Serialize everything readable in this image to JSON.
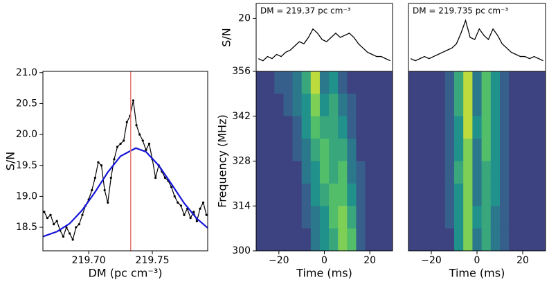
{
  "chart_data": [
    {
      "type": "dm-curve",
      "xlabel": "DM (pc cm⁻³)",
      "ylabel": "S/N",
      "xlim": [
        219.664,
        219.7935
      ],
      "ylim": [
        18.12,
        21.02
      ],
      "xticks": [
        {
          "value": 219.7,
          "label": "219.70"
        },
        {
          "value": 219.75,
          "label": "219.75"
        }
      ],
      "yticks": [
        {
          "value": 18.5,
          "label": "18.5"
        },
        {
          "value": 19.0,
          "label": "19.0"
        },
        {
          "value": 19.5,
          "label": "19.5"
        },
        {
          "value": 20.0,
          "label": "20.0"
        },
        {
          "value": 20.5,
          "label": "20.5"
        },
        {
          "value": 21.0,
          "label": "21.0"
        }
      ],
      "vline": 219.733,
      "vline_color": "#e8786f",
      "series": [
        {
          "color": "#000000",
          "x": [
            219.665,
            219.6675,
            219.67,
            219.6725,
            219.675,
            219.6775,
            219.68,
            219.6825,
            219.685,
            219.6875,
            219.69,
            219.6925,
            219.695,
            219.6975,
            219.7,
            219.7025,
            219.705,
            219.7075,
            219.71,
            219.7125,
            219.715,
            219.7175,
            219.72,
            219.7225,
            219.725,
            219.7275,
            219.73,
            219.7325,
            219.735,
            219.7375,
            219.74,
            219.7425,
            219.745,
            219.7475,
            219.75,
            219.7525,
            219.755,
            219.7575,
            219.76,
            219.7625,
            219.765,
            219.7675,
            219.77,
            219.7725,
            219.775,
            219.7775,
            219.78,
            219.7825,
            219.785,
            219.7875,
            219.79,
            219.7925
          ],
          "values": [
            18.75,
            18.65,
            18.7,
            18.55,
            18.6,
            18.45,
            18.35,
            18.5,
            18.4,
            18.3,
            18.5,
            18.55,
            18.7,
            18.85,
            18.95,
            19.1,
            19.3,
            19.55,
            19.5,
            19.1,
            18.9,
            19.3,
            19.6,
            19.8,
            19.85,
            19.9,
            20.2,
            20.3,
            20.55,
            20.15,
            20.0,
            19.9,
            19.75,
            19.85,
            19.6,
            19.3,
            19.5,
            19.4,
            19.3,
            19.25,
            19.15,
            19.0,
            18.9,
            18.85,
            18.7,
            18.8,
            18.65,
            18.75,
            18.6,
            18.8,
            18.9,
            18.7
          ],
          "style": "points"
        },
        {
          "color": "#1515d8",
          "x": [
            219.664,
            219.675,
            219.685,
            219.695,
            219.705,
            219.715,
            219.725,
            219.737,
            219.745,
            219.755,
            219.765,
            219.775,
            219.785,
            219.7935
          ],
          "values": [
            18.35,
            18.43,
            18.56,
            18.78,
            19.07,
            19.39,
            19.65,
            19.78,
            19.72,
            19.5,
            19.2,
            18.89,
            18.64,
            18.49
          ],
          "style": "line"
        }
      ]
    },
    {
      "type": "profile",
      "ylabel": "S/N",
      "annotation": "DM = 219.37 pc cm⁻³",
      "xlim": [
        -30,
        30
      ],
      "ylim": [
        -5,
        27
      ],
      "yticks": [
        20
      ],
      "color": "#000000",
      "x": [
        -29,
        -27,
        -25,
        -23,
        -21,
        -19,
        -17,
        -15,
        -13,
        -11,
        -9,
        -7,
        -5,
        -3,
        -1,
        1,
        3,
        5,
        7,
        9,
        11,
        13,
        15,
        17,
        19,
        21,
        23,
        25,
        27,
        29
      ],
      "values": [
        1,
        0,
        2,
        1,
        3,
        2,
        4,
        5,
        7,
        9,
        8,
        11,
        15,
        13,
        10,
        9,
        11,
        13,
        11,
        12,
        13,
        11,
        8,
        6,
        4,
        3,
        2,
        2,
        1,
        0
      ]
    },
    {
      "type": "heatmap",
      "xlabel": "Time (ms)",
      "ylabel": "Frequency (MHz)",
      "colormap": "viridis",
      "xlim": [
        -30,
        30
      ],
      "ylim": [
        300,
        356
      ],
      "zlim": [
        0,
        10
      ],
      "xticks": [
        {
          "value": -20,
          "label": "−20"
        },
        0,
        20
      ],
      "yticks": [
        300,
        314,
        328,
        342,
        356
      ],
      "x": [
        -28,
        -24,
        -20,
        -16,
        -12,
        -8,
        -4,
        0,
        4,
        8,
        12,
        16,
        20,
        24,
        28
      ],
      "y": [
        352.5,
        345.5,
        338.5,
        331.5,
        324.5,
        317.5,
        310.5,
        303.5
      ],
      "z": [
        [
          2,
          2,
          3,
          3,
          4,
          6,
          9,
          4,
          5,
          3,
          2,
          2,
          2,
          2,
          2
        ],
        [
          2,
          2,
          2,
          3,
          4,
          5,
          8,
          5,
          6,
          4,
          3,
          2,
          2,
          2,
          2
        ],
        [
          2,
          2,
          2,
          2,
          3,
          5,
          7,
          6,
          6,
          5,
          3,
          2,
          2,
          2,
          2
        ],
        [
          2,
          2,
          2,
          2,
          3,
          4,
          6,
          7,
          6,
          6,
          4,
          2,
          2,
          2,
          2
        ],
        [
          2,
          2,
          2,
          2,
          2,
          4,
          5,
          7,
          6,
          7,
          4,
          3,
          2,
          2,
          2
        ],
        [
          2,
          2,
          2,
          2,
          2,
          3,
          5,
          6,
          7,
          7,
          5,
          3,
          2,
          2,
          2
        ],
        [
          2,
          2,
          2,
          2,
          2,
          3,
          4,
          5,
          7,
          8,
          6,
          3,
          2,
          2,
          2
        ],
        [
          2,
          2,
          2,
          2,
          2,
          2,
          4,
          5,
          6,
          8,
          7,
          3,
          2,
          2,
          2
        ]
      ]
    },
    {
      "type": "profile",
      "annotation": "DM = 219.735 pc cm⁻³",
      "xlim": [
        -30,
        30
      ],
      "ylim": [
        -5,
        27
      ],
      "color": "#000000",
      "x": [
        -29,
        -27,
        -25,
        -23,
        -21,
        -19,
        -17,
        -15,
        -13,
        -11,
        -9,
        -7,
        -5,
        -3,
        -1,
        1,
        3,
        5,
        7,
        9,
        11,
        13,
        15,
        17,
        19,
        21,
        23,
        25,
        27,
        29
      ],
      "values": [
        1,
        0,
        1,
        2,
        1,
        2,
        3,
        4,
        5,
        6,
        8,
        13,
        19,
        11,
        10,
        15,
        12,
        10,
        15,
        12,
        8,
        6,
        4,
        3,
        2,
        2,
        1,
        2,
        1,
        0
      ]
    },
    {
      "type": "heatmap",
      "xlabel": "Time (ms)",
      "colormap": "viridis",
      "xlim": [
        -30,
        30
      ],
      "ylim": [
        300,
        356
      ],
      "zlim": [
        0,
        10
      ],
      "xticks": [
        {
          "value": -20,
          "label": "−20"
        },
        0,
        20
      ],
      "x": [
        -28,
        -24,
        -20,
        -16,
        -12,
        -8,
        -4,
        0,
        4,
        8,
        12,
        16,
        20,
        24,
        28
      ],
      "y": [
        352.5,
        345.5,
        338.5,
        331.5,
        324.5,
        317.5,
        310.5,
        303.5
      ],
      "z": [
        [
          2,
          2,
          2,
          2,
          3,
          6,
          9,
          4,
          7,
          5,
          3,
          2,
          2,
          2,
          2
        ],
        [
          2,
          2,
          2,
          2,
          3,
          6,
          9,
          4,
          7,
          5,
          3,
          2,
          2,
          2,
          2
        ],
        [
          2,
          2,
          2,
          2,
          3,
          5,
          9,
          5,
          7,
          5,
          3,
          2,
          2,
          2,
          2
        ],
        [
          2,
          2,
          2,
          2,
          3,
          5,
          8,
          4,
          7,
          5,
          3,
          2,
          2,
          2,
          2
        ],
        [
          2,
          2,
          2,
          2,
          3,
          6,
          8,
          4,
          6,
          5,
          3,
          2,
          2,
          2,
          2
        ],
        [
          2,
          2,
          2,
          2,
          3,
          5,
          8,
          4,
          6,
          5,
          3,
          2,
          2,
          2,
          2
        ],
        [
          2,
          2,
          2,
          2,
          3,
          5,
          8,
          5,
          6,
          4,
          3,
          2,
          2,
          2,
          2
        ],
        [
          2,
          2,
          2,
          2,
          2,
          5,
          8,
          4,
          6,
          4,
          3,
          2,
          2,
          2,
          2
        ]
      ]
    }
  ]
}
